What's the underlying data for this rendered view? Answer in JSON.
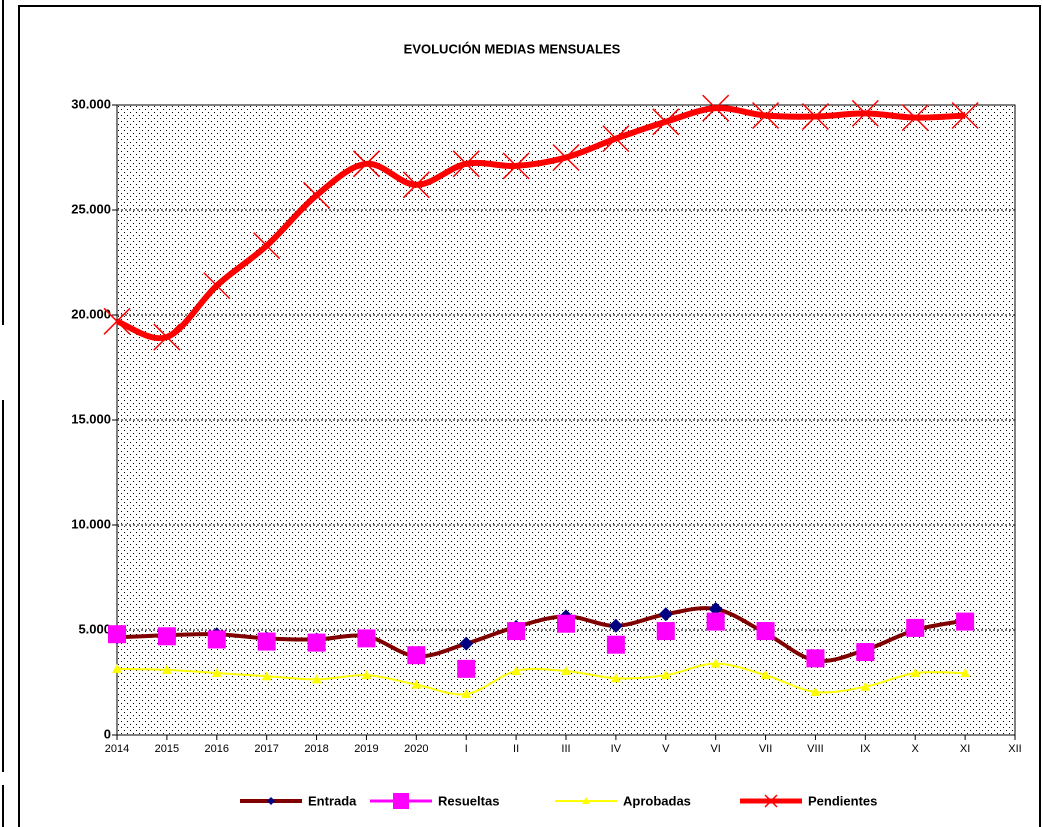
{
  "chart_data": {
    "type": "line",
    "title": "EVOLUCIÓN MEDIAS MENSUALES",
    "categories": [
      "2014",
      "2015",
      "2016",
      "2017",
      "2018",
      "2019",
      "2020",
      "I",
      "II",
      "III",
      "IV",
      "V",
      "VI",
      "VII",
      "VIII",
      "IX",
      "X",
      "XI",
      "XII"
    ],
    "ylim": [
      0,
      30000
    ],
    "yticks": [
      0,
      {
        "value": 5000,
        "label": "5.000"
      },
      {
        "value": 10000,
        "label": "10.000"
      },
      {
        "value": 15000,
        "label": "15.000"
      },
      {
        "value": 20000,
        "label": "20.000"
      },
      {
        "value": 25000,
        "label": "25.000"
      },
      {
        "value": 30000,
        "label": "30.000"
      }
    ],
    "grid": true,
    "legend": "bottom",
    "series": [
      {
        "name": "Entrada",
        "color": "#800000",
        "marker_color": "#000080",
        "marker": "diamond",
        "line": true,
        "values": [
          4650,
          4750,
          4800,
          4600,
          4550,
          4700,
          3750,
          4350,
          5150,
          5650,
          5200,
          5750,
          6000,
          4850,
          3550,
          4050,
          5000,
          5450,
          null
        ]
      },
      {
        "name": "Resueltas",
        "color": "#ff00ff",
        "marker_color": "#ff00ff",
        "marker": "square",
        "line": false,
        "values": [
          4800,
          4700,
          4550,
          4450,
          4400,
          4600,
          3800,
          3150,
          4950,
          5300,
          4300,
          4950,
          5400,
          4950,
          3650,
          3950,
          5100,
          5400,
          null
        ]
      },
      {
        "name": "Aprobadas",
        "color": "#ffff00",
        "marker_color": "#ffff00",
        "marker": "triangle",
        "line": true,
        "values": [
          3150,
          3100,
          2950,
          2800,
          2650,
          2850,
          2400,
          1950,
          3050,
          3050,
          2700,
          2850,
          3400,
          2850,
          2050,
          2300,
          2950,
          2950,
          null
        ]
      },
      {
        "name": "Pendientes",
        "color": "#ff0000",
        "marker_color": "#ff0000",
        "marker": "x",
        "line": true,
        "values": [
          19700,
          18950,
          21400,
          23300,
          25700,
          27200,
          26200,
          27200,
          27100,
          27500,
          28400,
          29200,
          29850,
          29500,
          29450,
          29600,
          29400,
          29500,
          null
        ]
      }
    ]
  }
}
